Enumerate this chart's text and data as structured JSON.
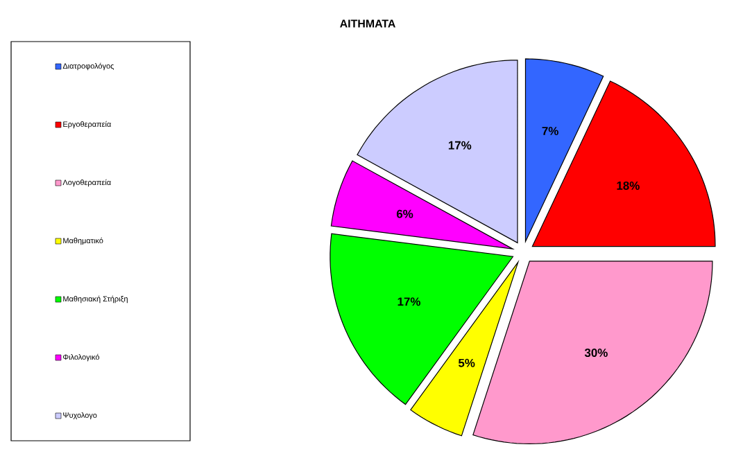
{
  "chart_data": {
    "type": "pie",
    "title": "ΑΙΤΗΜΑΤΑ",
    "categories": [
      "Διατροφολόγος",
      "Εργοθεραπεία",
      "Λογοθεραπεία",
      "Μαθηματικό",
      "Μαθησιακή Στήριξη",
      "Φιλολογικό",
      "Ψυχολογο"
    ],
    "values": [
      7,
      18,
      30,
      5,
      17,
      6,
      17
    ],
    "value_labels": [
      "7%",
      "18%",
      "30%",
      "5%",
      "17%",
      "6%",
      "17%"
    ],
    "colors": [
      "#3366ff",
      "#ff0000",
      "#ff99cc",
      "#ffff00",
      "#00ff00",
      "#ff00ff",
      "#ccccff"
    ],
    "legend": "left"
  }
}
